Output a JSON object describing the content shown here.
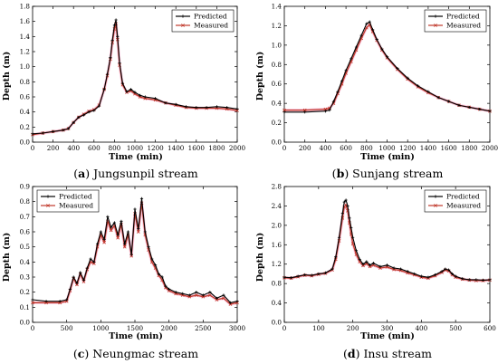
{
  "chart_data": [
    {
      "type": "line",
      "caption": {
        "letter": "a",
        "text": "Jungsunpil stream"
      },
      "xlabel": "Time  (min)",
      "ylabel": "Depth (m)",
      "xlim": [
        0,
        2000
      ],
      "ylim": [
        0,
        1.8
      ],
      "xticks": [
        0,
        200,
        400,
        600,
        800,
        1000,
        1200,
        1400,
        1600,
        1800,
        2000
      ],
      "yticks": [
        0.0,
        0.2,
        0.4,
        0.6,
        0.8,
        1.0,
        1.2,
        1.4,
        1.6,
        1.8
      ],
      "ytick_labels": [
        "0.0",
        "0.2",
        "0.4",
        "0.6",
        "0.8",
        "1.0",
        "1.2",
        "1.4",
        "1.6",
        "1.8"
      ],
      "legend_position": "top-right",
      "series": [
        {
          "name": "Predicted",
          "color": "#000000",
          "marker": "plus",
          "x": [
            0,
            100,
            200,
            300,
            350,
            400,
            450,
            500,
            550,
            600,
            650,
            700,
            730,
            760,
            780,
            800,
            815,
            830,
            850,
            880,
            920,
            960,
            1000,
            1050,
            1100,
            1200,
            1300,
            1400,
            1500,
            1600,
            1700,
            1800,
            1900,
            2000
          ],
          "y": [
            0.11,
            0.12,
            0.14,
            0.16,
            0.18,
            0.26,
            0.33,
            0.36,
            0.4,
            0.42,
            0.48,
            0.7,
            0.9,
            1.12,
            1.35,
            1.55,
            1.62,
            1.4,
            1.05,
            0.78,
            0.67,
            0.7,
            0.66,
            0.62,
            0.6,
            0.58,
            0.52,
            0.5,
            0.47,
            0.46,
            0.46,
            0.47,
            0.46,
            0.44
          ]
        },
        {
          "name": "Measured",
          "color": "#c0392b",
          "marker": "x",
          "x": [
            0,
            100,
            200,
            300,
            350,
            400,
            450,
            500,
            550,
            600,
            650,
            700,
            730,
            760,
            780,
            800,
            815,
            830,
            850,
            880,
            920,
            960,
            1000,
            1050,
            1100,
            1200,
            1300,
            1400,
            1500,
            1600,
            1700,
            1800,
            1900,
            2000
          ],
          "y": [
            0.1,
            0.12,
            0.14,
            0.16,
            0.18,
            0.26,
            0.33,
            0.37,
            0.41,
            0.43,
            0.49,
            0.7,
            0.88,
            1.1,
            1.32,
            1.5,
            1.57,
            1.36,
            1.02,
            0.76,
            0.66,
            0.68,
            0.64,
            0.6,
            0.58,
            0.56,
            0.52,
            0.49,
            0.46,
            0.45,
            0.45,
            0.45,
            0.44,
            0.42
          ]
        }
      ]
    },
    {
      "type": "line",
      "caption": {
        "letter": "b",
        "text": "Sunjang stream"
      },
      "xlabel": "Time  (min)",
      "ylabel": "Depth (m)",
      "xlim": [
        0,
        2000
      ],
      "ylim": [
        0,
        1.4
      ],
      "xticks": [
        0,
        200,
        400,
        600,
        800,
        1000,
        1200,
        1400,
        1600,
        1800,
        2000
      ],
      "yticks": [
        0.0,
        0.2,
        0.4,
        0.6,
        0.8,
        1.0,
        1.2,
        1.4
      ],
      "ytick_labels": [
        "0.0",
        "0.2",
        "0.4",
        "0.6",
        "0.8",
        "1.0",
        "1.2",
        "1.4"
      ],
      "legend_position": "top-right",
      "series": [
        {
          "name": "Predicted",
          "color": "#000000",
          "marker": "plus",
          "x": [
            0,
            200,
            400,
            440,
            480,
            520,
            560,
            600,
            650,
            700,
            750,
            800,
            830,
            860,
            900,
            950,
            1000,
            1100,
            1200,
            1300,
            1400,
            1500,
            1600,
            1700,
            1800,
            1900,
            2000
          ],
          "y": [
            0.31,
            0.31,
            0.32,
            0.33,
            0.42,
            0.52,
            0.63,
            0.74,
            0.86,
            0.98,
            1.1,
            1.22,
            1.24,
            1.16,
            1.06,
            0.96,
            0.88,
            0.76,
            0.66,
            0.58,
            0.52,
            0.46,
            0.42,
            0.38,
            0.36,
            0.34,
            0.32
          ]
        },
        {
          "name": "Measured",
          "color": "#c0392b",
          "marker": "x",
          "x": [
            0,
            200,
            400,
            440,
            480,
            520,
            560,
            600,
            650,
            700,
            750,
            800,
            830,
            860,
            900,
            950,
            1000,
            1100,
            1200,
            1300,
            1400,
            1500,
            1600,
            1700,
            1800,
            1900,
            2000
          ],
          "y": [
            0.33,
            0.33,
            0.34,
            0.35,
            0.4,
            0.5,
            0.6,
            0.71,
            0.83,
            0.95,
            1.07,
            1.18,
            1.21,
            1.14,
            1.05,
            0.95,
            0.87,
            0.75,
            0.65,
            0.57,
            0.51,
            0.46,
            0.42,
            0.38,
            0.36,
            0.34,
            0.32
          ]
        }
      ]
    },
    {
      "type": "line",
      "caption": {
        "letter": "c",
        "text": "Neungmac stream"
      },
      "xlabel": "Time  (min)",
      "ylabel": "Depth (m)",
      "xlim": [
        0,
        3000
      ],
      "ylim": [
        0,
        0.9
      ],
      "xticks": [
        0,
        500,
        1000,
        1500,
        2000,
        2500,
        3000
      ],
      "yticks": [
        0.0,
        0.1,
        0.2,
        0.3,
        0.4,
        0.5,
        0.6,
        0.7,
        0.8,
        0.9
      ],
      "ytick_labels": [
        "0.0",
        "0.1",
        "0.2",
        "0.3",
        "0.4",
        "0.5",
        "0.6",
        "0.7",
        "0.8",
        "0.9"
      ],
      "legend_position": "top-left",
      "series": [
        {
          "name": "Predicted",
          "color": "#000000",
          "marker": "plus",
          "x": [
            0,
            200,
            400,
            500,
            550,
            600,
            650,
            700,
            750,
            800,
            850,
            900,
            950,
            1000,
            1050,
            1100,
            1150,
            1200,
            1250,
            1300,
            1350,
            1400,
            1450,
            1500,
            1550,
            1600,
            1650,
            1700,
            1750,
            1800,
            1850,
            1900,
            1950,
            2000,
            2100,
            2200,
            2300,
            2400,
            2500,
            2600,
            2700,
            2800,
            2900,
            3000
          ],
          "y": [
            0.15,
            0.14,
            0.14,
            0.15,
            0.22,
            0.3,
            0.26,
            0.33,
            0.28,
            0.36,
            0.42,
            0.4,
            0.52,
            0.6,
            0.55,
            0.7,
            0.63,
            0.66,
            0.58,
            0.67,
            0.52,
            0.6,
            0.45,
            0.75,
            0.62,
            0.82,
            0.6,
            0.5,
            0.42,
            0.38,
            0.32,
            0.3,
            0.24,
            0.22,
            0.2,
            0.19,
            0.18,
            0.2,
            0.18,
            0.2,
            0.16,
            0.18,
            0.13,
            0.14
          ]
        },
        {
          "name": "Measured",
          "color": "#c0392b",
          "marker": "x",
          "x": [
            0,
            200,
            400,
            500,
            550,
            600,
            650,
            700,
            750,
            800,
            850,
            900,
            950,
            1000,
            1050,
            1100,
            1150,
            1200,
            1250,
            1300,
            1350,
            1400,
            1450,
            1500,
            1550,
            1600,
            1650,
            1700,
            1750,
            1800,
            1850,
            1900,
            1950,
            2000,
            2100,
            2200,
            2300,
            2400,
            2500,
            2600,
            2700,
            2800,
            2900,
            3000
          ],
          "y": [
            0.13,
            0.13,
            0.13,
            0.14,
            0.21,
            0.29,
            0.25,
            0.32,
            0.27,
            0.35,
            0.4,
            0.39,
            0.5,
            0.58,
            0.53,
            0.67,
            0.61,
            0.64,
            0.56,
            0.65,
            0.5,
            0.58,
            0.44,
            0.72,
            0.6,
            0.79,
            0.58,
            0.48,
            0.4,
            0.36,
            0.31,
            0.28,
            0.23,
            0.21,
            0.19,
            0.18,
            0.17,
            0.18,
            0.17,
            0.18,
            0.15,
            0.16,
            0.12,
            0.13
          ]
        }
      ]
    },
    {
      "type": "line",
      "caption": {
        "letter": "d",
        "text": "Insu stream"
      },
      "xlabel": "Time  (min)",
      "ylabel": "Depth (m)",
      "xlim": [
        0,
        600
      ],
      "ylim": [
        0,
        2.8
      ],
      "xticks": [
        0,
        100,
        200,
        300,
        400,
        500,
        600
      ],
      "yticks": [
        0.0,
        0.4,
        0.8,
        1.2,
        1.6,
        2.0,
        2.4,
        2.8
      ],
      "ytick_labels": [
        "0.0",
        "0.4",
        "0.8",
        "1.2",
        "1.6",
        "2.0",
        "2.4",
        "2.8"
      ],
      "legend_position": "top-right",
      "series": [
        {
          "name": "Predicted",
          "color": "#000000",
          "marker": "plus",
          "x": [
            0,
            20,
            40,
            60,
            80,
            100,
            120,
            140,
            150,
            160,
            170,
            175,
            180,
            185,
            190,
            195,
            200,
            210,
            220,
            230,
            240,
            250,
            260,
            280,
            300,
            320,
            340,
            360,
            380,
            400,
            420,
            440,
            460,
            470,
            480,
            490,
            500,
            520,
            540,
            560,
            580,
            600
          ],
          "y": [
            0.93,
            0.92,
            0.95,
            0.98,
            0.97,
            1.0,
            1.02,
            1.1,
            1.35,
            1.75,
            2.25,
            2.48,
            2.52,
            2.4,
            2.15,
            1.95,
            1.75,
            1.48,
            1.3,
            1.2,
            1.25,
            1.18,
            1.22,
            1.15,
            1.18,
            1.12,
            1.1,
            1.05,
            1.0,
            0.95,
            0.93,
            0.98,
            1.05,
            1.1,
            1.08,
            1.0,
            0.95,
            0.9,
            0.88,
            0.88,
            0.87,
            0.88
          ]
        },
        {
          "name": "Measured",
          "color": "#c0392b",
          "marker": "x",
          "x": [
            0,
            20,
            40,
            60,
            80,
            100,
            120,
            140,
            150,
            160,
            170,
            175,
            180,
            185,
            190,
            195,
            200,
            210,
            220,
            230,
            240,
            250,
            260,
            280,
            300,
            320,
            340,
            360,
            380,
            400,
            420,
            440,
            460,
            470,
            480,
            490,
            500,
            520,
            540,
            560,
            580,
            600
          ],
          "y": [
            0.92,
            0.91,
            0.94,
            0.97,
            0.96,
            0.99,
            1.01,
            1.08,
            1.3,
            1.68,
            2.15,
            2.38,
            2.42,
            2.3,
            2.05,
            1.82,
            1.62,
            1.4,
            1.25,
            1.17,
            1.21,
            1.15,
            1.18,
            1.12,
            1.14,
            1.09,
            1.07,
            1.02,
            0.98,
            0.93,
            0.91,
            0.96,
            1.03,
            1.08,
            1.06,
            0.98,
            0.93,
            0.89,
            0.87,
            0.86,
            0.86,
            0.87
          ]
        }
      ]
    }
  ]
}
